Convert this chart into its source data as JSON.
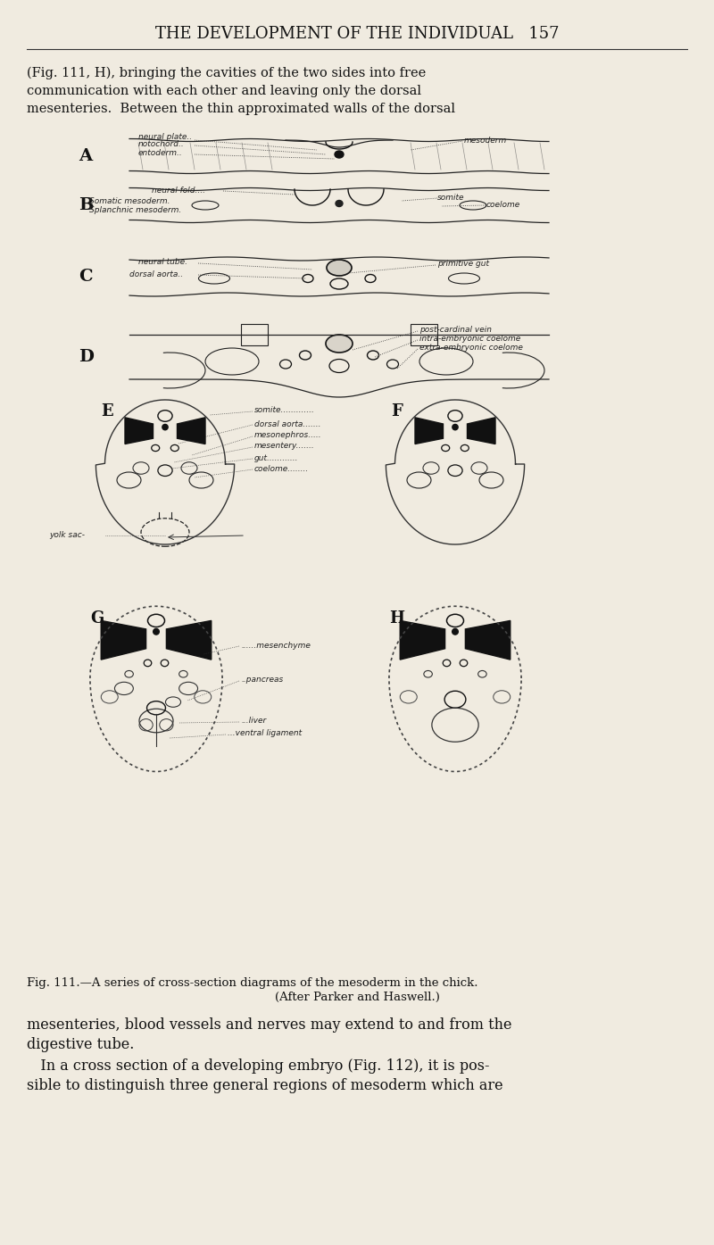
{
  "bg_color": "#f0ebe0",
  "page_width": 8.0,
  "page_height": 13.95,
  "header_text": "THE DEVELOPMENT OF THE INDIVIDUAL   157",
  "intro_text": "(Fig. 111, H), bringing the cavities of the two sides into free\ncommunication with each other and leaving only the dorsal\nmesenteries.  Between the thin approximated walls of the dorsal",
  "fig_caption_line1": "Fig. 111.—A series of cross-section diagrams of the mesoderm in the chick.",
  "fig_caption_line2": "(After Parker and Haswell.)",
  "body_text_line1": "mesenteries, blood vessels and nerves may extend to and from the",
  "body_text_line2": "digestive tube.",
  "body_text_line3": "   In a cross section of a developing embryo (Fig. 112), it is pos-",
  "body_text_line4": "sible to distinguish three general regions of mesoderm which are",
  "diagram_labels": {
    "A": {
      "label": "A",
      "annotations": [
        "neural plate",
        "notochord",
        "entoderm",
        "mesoderm"
      ]
    },
    "B": {
      "label": "B",
      "annotations": [
        "neural fold",
        "Somatic mesoderm",
        "Splanchnic mesoderm",
        "somite",
        "coelome"
      ]
    },
    "C": {
      "label": "C",
      "annotations": [
        "neural tube",
        "dorsal aorta",
        "primitive gut"
      ]
    },
    "D": {
      "label": "D",
      "annotations": [
        "post cardinal vein",
        "intra-embryonic coelome",
        "extra-embryonic coelome"
      ]
    },
    "E": {
      "label": "E",
      "annotations": [
        "somite",
        "dorsal aorta",
        "mesonephros",
        "mesentery",
        "gut",
        "coelome"
      ]
    },
    "F": {
      "label": "F"
    },
    "G": {
      "label": "G",
      "annotations": [
        "mesenchyme",
        "pancreas",
        "liver",
        "ventral ligament"
      ]
    },
    "H": {
      "label": "H"
    }
  },
  "yolk_sac_label": "yolk sac"
}
